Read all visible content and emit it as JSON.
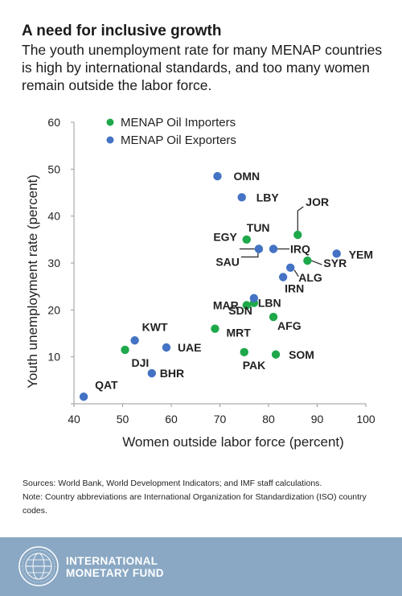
{
  "header": {
    "title": "A need for inclusive growth",
    "subtitle": "The youth unemployment rate for many MENAP countries is high by international standards, and too many women remain outside the labor force."
  },
  "chart_data": {
    "type": "scatter",
    "xlabel": "Women outside labor force (percent)",
    "ylabel": "Youth unemployment rate (percent)",
    "xlim": [
      40,
      100
    ],
    "ylim": [
      0,
      60
    ],
    "xticks": [
      "40",
      "50",
      "60",
      "70",
      "80",
      "90",
      "100"
    ],
    "yticks": [
      "10",
      "20",
      "30",
      "40",
      "50",
      "60"
    ],
    "legend_position": "top-left",
    "colors": {
      "importers": "#1fa84a",
      "exporters": "#4472c4"
    },
    "series": [
      {
        "name": "MENAP Oil Importers",
        "color": "#1fa84a",
        "points": [
          {
            "label": "TUN",
            "x": 75.5,
            "y": 35
          },
          {
            "label": "JOR",
            "x": 86,
            "y": 36
          },
          {
            "label": "EGY",
            "x": 78,
            "y": 33
          },
          {
            "label": "SYR",
            "x": 88,
            "y": 30.5
          },
          {
            "label": "MAR",
            "x": 75.5,
            "y": 21
          },
          {
            "label": "LBN",
            "x": 77,
            "y": 21.5
          },
          {
            "label": "AFG",
            "x": 81,
            "y": 18.5
          },
          {
            "label": "MRT",
            "x": 69,
            "y": 16
          },
          {
            "label": "DJI",
            "x": 50.5,
            "y": 11.5
          },
          {
            "label": "PAK",
            "x": 75,
            "y": 11
          },
          {
            "label": "SOM",
            "x": 81.5,
            "y": 10.5
          }
        ]
      },
      {
        "name": "MENAP Oil Exporters",
        "color": "#4472c4",
        "points": [
          {
            "label": "OMN",
            "x": 69.5,
            "y": 48.5
          },
          {
            "label": "LBY",
            "x": 74.5,
            "y": 44
          },
          {
            "label": "IRQ",
            "x": 81,
            "y": 33
          },
          {
            "label": "SAU",
            "x": 78,
            "y": 33
          },
          {
            "label": "YEM",
            "x": 94,
            "y": 32
          },
          {
            "label": "ALG",
            "x": 84.5,
            "y": 29
          },
          {
            "label": "IRN",
            "x": 83,
            "y": 27
          },
          {
            "label": "SDN",
            "x": 77,
            "y": 22.5
          },
          {
            "label": "KWT",
            "x": 52.5,
            "y": 13.5
          },
          {
            "label": "UAE",
            "x": 59,
            "y": 12
          },
          {
            "label": "BHR",
            "x": 56,
            "y": 6.5
          },
          {
            "label": "QAT",
            "x": 42,
            "y": 1.5
          }
        ]
      }
    ]
  },
  "notes": {
    "sources": "Sources: World Bank, World Development Indicators; and IMF staff calculations.",
    "note": "Note: Country abbreviations are International Organization for Standardization (ISO) country codes."
  },
  "footer": {
    "brand_line1": "INTERNATIONAL",
    "brand_line2": "MONETARY FUND",
    "seal_icon": "imf-seal-icon",
    "seal_text": "INTERNATIONAL MONETARY FUND"
  }
}
